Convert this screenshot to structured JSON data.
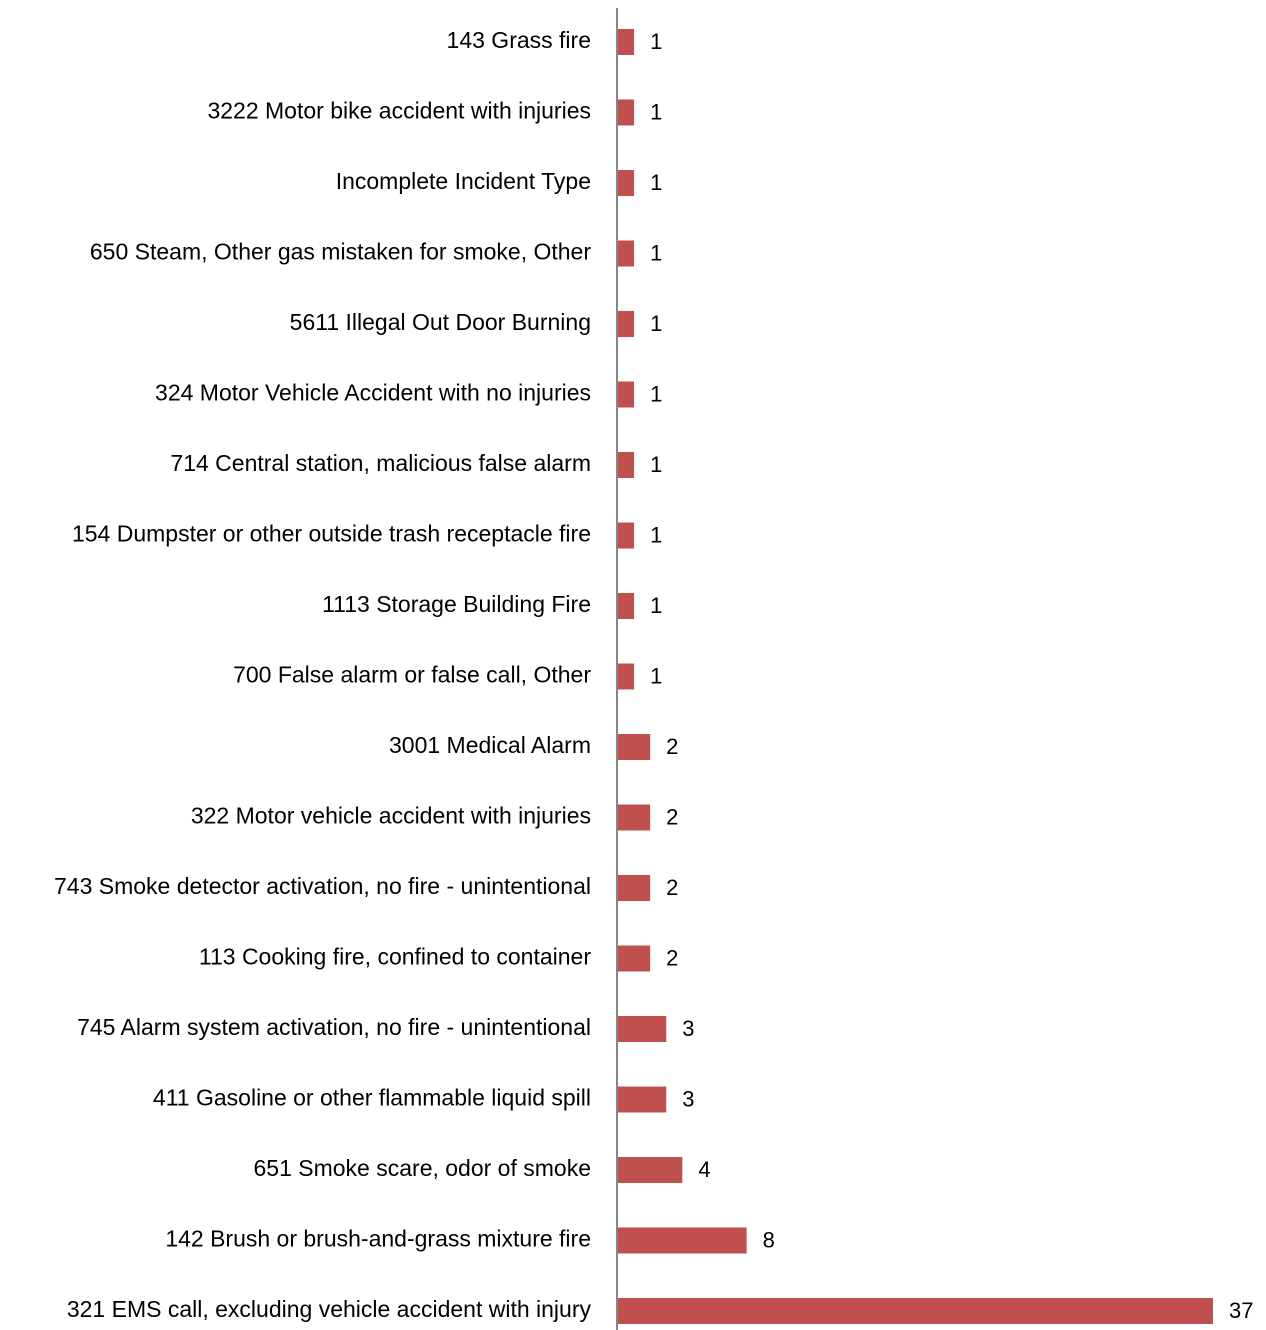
{
  "chart_data": {
    "type": "bar",
    "orientation": "horizontal",
    "categories": [
      "143 Grass fire",
      "3222 Motor bike accident with injuries",
      "Incomplete Incident Type",
      "650 Steam, Other gas mistaken for smoke, Other",
      "5611 Illegal Out  Door Burning",
      "324 Motor Vehicle Accident with no injuries",
      "714 Central station, malicious false alarm",
      "154 Dumpster or other outside trash receptacle fire",
      "1113 Storage Building Fire",
      "700 False alarm or false call, Other",
      "3001 Medical Alarm",
      "322 Motor vehicle accident with injuries",
      "743 Smoke detector activation, no fire - unintentional",
      "113 Cooking fire, confined to container",
      "745 Alarm system activation, no fire - unintentional",
      "411 Gasoline or other flammable liquid spill",
      "651 Smoke scare, odor of smoke",
      "142 Brush or brush-and-grass mixture fire",
      "321 EMS call, excluding vehicle accident with injury"
    ],
    "values": [
      1,
      1,
      1,
      1,
      1,
      1,
      1,
      1,
      1,
      1,
      2,
      2,
      2,
      2,
      3,
      3,
      4,
      8,
      37
    ],
    "data_labels": [
      "1",
      "1",
      "1",
      "1",
      "1",
      "1",
      "1",
      "1",
      "1",
      "1",
      "2",
      "2",
      "2",
      "2",
      "3",
      "3",
      "4",
      "8",
      "37"
    ],
    "xlim": [
      0,
      37
    ],
    "grid": false,
    "legend": "none",
    "bar_color": "#C0504D",
    "axis_color": "#868686"
  }
}
